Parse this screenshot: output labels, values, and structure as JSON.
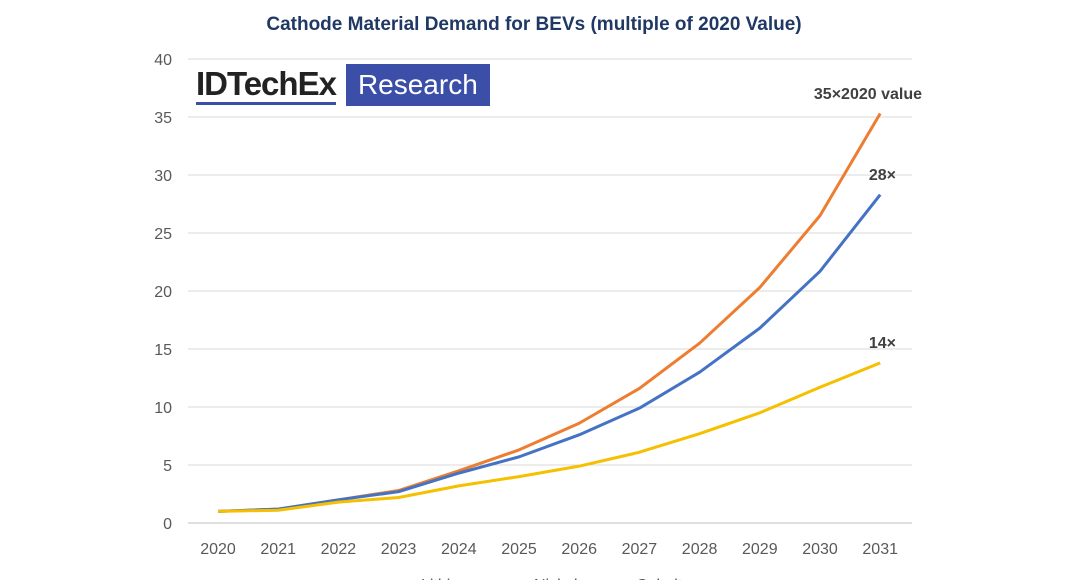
{
  "chart_data": {
    "type": "line",
    "title": "Cathode Material Demand for BEVs (multiple of 2020 Value)",
    "xlabel": "",
    "ylabel": "",
    "categories": [
      "2020",
      "2021",
      "2022",
      "2023",
      "2024",
      "2025",
      "2026",
      "2027",
      "2028",
      "2029",
      "2030",
      "2031"
    ],
    "ylim": [
      0,
      40
    ],
    "yticks": [
      0,
      5,
      10,
      15,
      20,
      25,
      30,
      35,
      40
    ],
    "grid": true,
    "legend_placement": "bottom",
    "series": [
      {
        "name": "Lithium",
        "color": "#ed7d31",
        "values": [
          1,
          1.2,
          2.0,
          2.8,
          4.5,
          6.3,
          8.6,
          11.6,
          15.5,
          20.3,
          26.5,
          35.3
        ]
      },
      {
        "name": "Nickel",
        "color": "#4472c4",
        "values": [
          1,
          1.2,
          2.0,
          2.7,
          4.3,
          5.7,
          7.6,
          9.9,
          13.0,
          16.8,
          21.7,
          28.3
        ]
      },
      {
        "name": "Cobalt",
        "color": "#f5c000",
        "values": [
          1,
          1.1,
          1.8,
          2.2,
          3.2,
          4.0,
          4.9,
          6.1,
          7.7,
          9.5,
          11.7,
          13.8
        ]
      }
    ],
    "annotations": [
      "35×2020 value",
      "28×",
      "14×"
    ]
  },
  "logo": {
    "name": "IDTechEx",
    "tag": "Research"
  }
}
